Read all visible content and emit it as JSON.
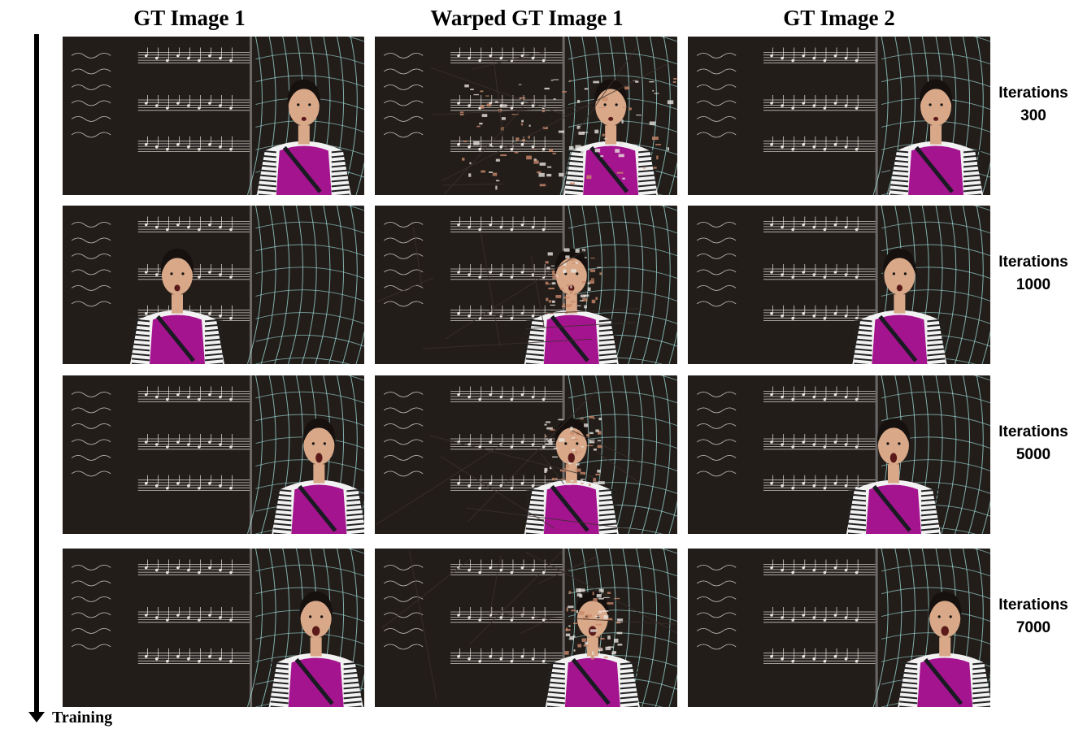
{
  "columns": {
    "gt1": "GT Image 1",
    "warped": "Warped GT Image 1",
    "gt2": "GT Image 2"
  },
  "axis": {
    "label": "Training"
  },
  "rows": [
    {
      "iter_word": "Iterations",
      "iter_value": "300"
    },
    {
      "iter_word": "Iterations",
      "iter_value": "1000"
    },
    {
      "iter_word": "Iterations",
      "iter_value": "5000"
    },
    {
      "iter_word": "Iterations",
      "iter_value": "7000"
    }
  ],
  "colors": {
    "background": "#231d1a",
    "staff_lines": "#e8e4de",
    "wire_sculpture": "#9fe0dc",
    "shirt": "#a5148f",
    "jacket_stripes": "#f2f2f2",
    "skin": "#d8a888",
    "warp_artifact": "#c98a6a"
  }
}
